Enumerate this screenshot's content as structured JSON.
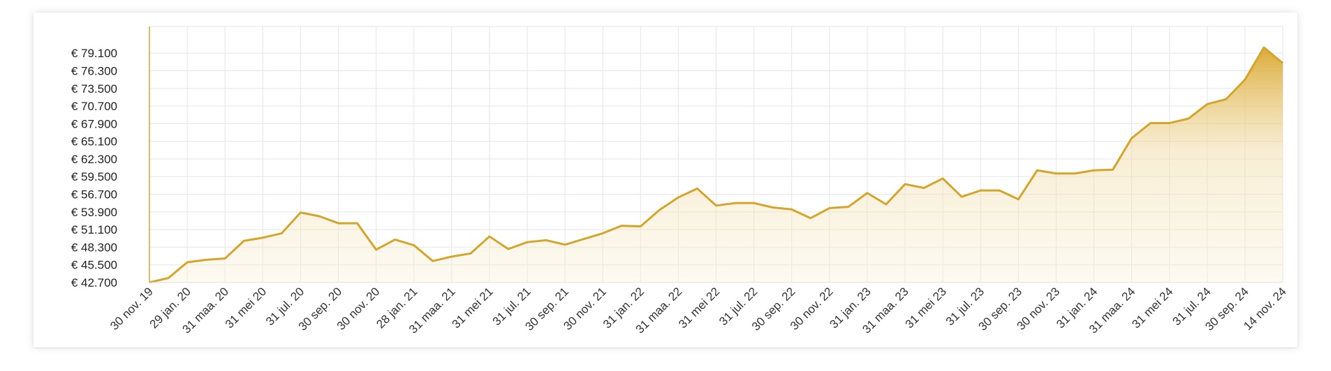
{
  "chart_data": {
    "type": "area",
    "title": "",
    "xlabel": "",
    "ylabel": "",
    "legend": "none",
    "grid": true,
    "color": "#d4a52a",
    "y_ticks": [
      "€ 42.700",
      "€ 45.500",
      "€ 48.300",
      "€ 51.100",
      "€ 53.900",
      "€ 56.700",
      "€ 59.500",
      "€ 62.300",
      "€ 65.100",
      "€ 67.900",
      "€ 70.700",
      "€ 73.500",
      "€ 76.300",
      "€ 79.100"
    ],
    "y_tick_values": [
      42700,
      45500,
      48300,
      51100,
      53900,
      56700,
      59500,
      62300,
      65100,
      67900,
      70700,
      73500,
      76300,
      79100
    ],
    "ylim": [
      42700,
      82000
    ],
    "x_ticks": [
      "30 nov. 19",
      "29 jan. 20",
      "31 maa. 20",
      "31 mei 20",
      "31 jul. 20",
      "30 sep. 20",
      "30 nov. 20",
      "28 jan. 21",
      "31 maa. 21",
      "31 mei 21",
      "31 jul. 21",
      "30 sep. 21",
      "30 nov. 21",
      "31 jan. 22",
      "31 maa. 22",
      "31 mei 22",
      "31 jul. 22",
      "30 sep. 22",
      "30 nov. 22",
      "31 jan. 23",
      "31 maa. 23",
      "31 mei 23",
      "31 jul. 23",
      "30 sep. 23",
      "30 nov. 23",
      "31 jan. 24",
      "31 maa. 24",
      "31 mei 24",
      "31 jul. 24",
      "30 sep. 24",
      "14 nov. 24"
    ],
    "series": [
      {
        "values": [
          42700,
          43400,
          45900,
          46300,
          46500,
          49300,
          49800,
          50500,
          53800,
          53200,
          52100,
          52100,
          47900,
          49500,
          48600,
          46100,
          46800,
          47300,
          50000,
          48000,
          49100,
          49400,
          48700,
          49600,
          50500,
          51700,
          51600,
          54200,
          56200,
          57600,
          54900,
          55300,
          55300,
          54600,
          54300,
          52900,
          54500,
          54700,
          56900,
          55100,
          58300,
          57700,
          59200,
          56300,
          57300,
          57300,
          55900,
          60500,
          60000,
          60000,
          60500,
          60600,
          65600,
          68000,
          68000,
          68700,
          71000,
          71800,
          74900,
          80000,
          77500
        ]
      }
    ]
  }
}
